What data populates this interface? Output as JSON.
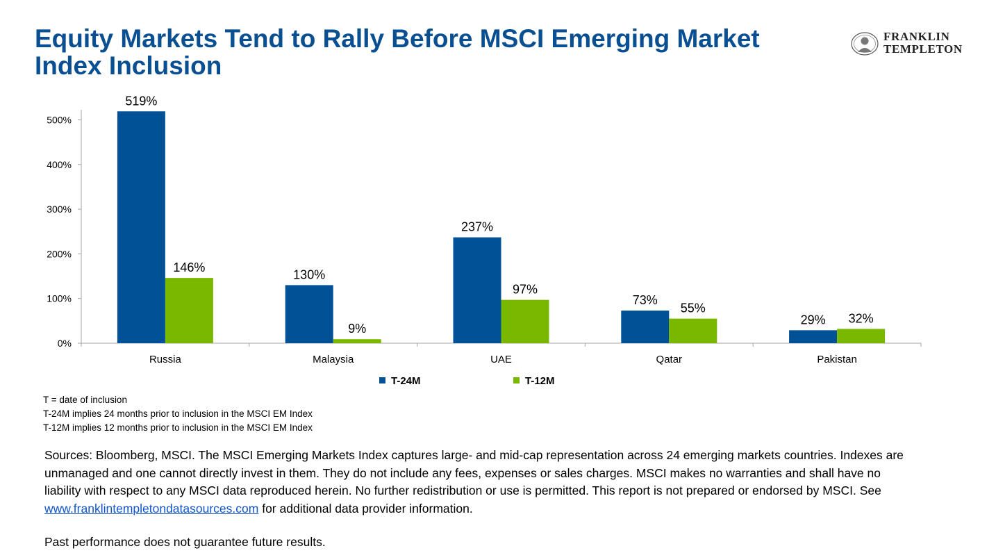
{
  "title": "Equity Markets Tend to Rally Before MSCI Emerging Market Index Inclusion",
  "logo": {
    "line1": "FRANKLIN",
    "line2": "TEMPLETON"
  },
  "chart_data": {
    "type": "bar",
    "categories": [
      "Russia",
      "Malaysia",
      "UAE",
      "Qatar",
      "Pakistan"
    ],
    "series": [
      {
        "name": "T-24M",
        "values": [
          519,
          130,
          237,
          73,
          29
        ],
        "labels": [
          "519%",
          "130%",
          "237%",
          "73%",
          "29%"
        ],
        "color": "#005196"
      },
      {
        "name": "T-12M",
        "values": [
          146,
          9,
          97,
          55,
          32
        ],
        "labels": [
          "146%",
          "9%",
          "97%",
          "55%",
          "32%"
        ],
        "color": "#7ab800"
      }
    ],
    "y_ticks": [
      "0%",
      "100%",
      "200%",
      "300%",
      "400%",
      "500%"
    ],
    "ylim": [
      0,
      520
    ],
    "legend_position": "bottom",
    "grid": false
  },
  "notes": [
    "T = date of inclusion",
    "T-24M implies 24 months prior to inclusion in the MSCI EM Index",
    "T-12M implies 12 months prior to inclusion in the MSCI EM Index"
  ],
  "sources": {
    "text_before": "Sources: Bloomberg, MSCI. The MSCI Emerging Markets Index captures large- and mid-cap representation across 24 emerging markets countries. Indexes are unmanaged and one cannot directly invest in them. They do not include any fees, expenses or sales charges. MSCI makes no warranties and shall have no liability with respect to any MSCI data reproduced herein. No further redistribution or use is permitted. This report is not prepared or endorsed by MSCI. See ",
    "link_text": "www.franklintempletondatasources.com",
    "text_after": " for additional data provider information."
  },
  "disclaimer": "Past performance does not guarantee future results."
}
